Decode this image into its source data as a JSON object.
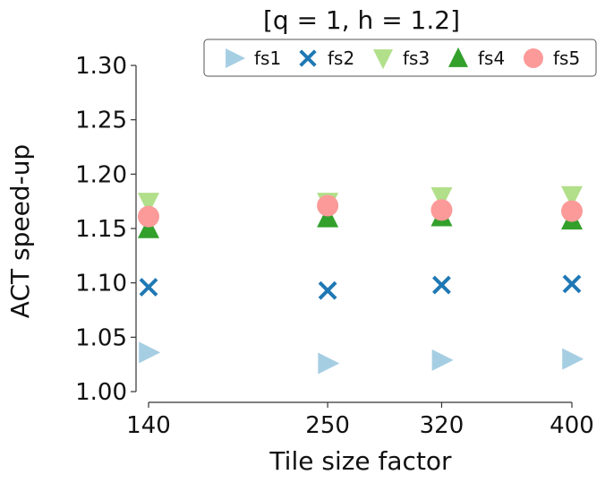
{
  "chart_data": {
    "type": "scatter",
    "title": "[q = 1, h = 1.2]",
    "xlabel": "Tile size factor",
    "ylabel": "ACT speed-up",
    "x": [
      140,
      250,
      320,
      400
    ],
    "x_tick_labels": [
      "140",
      "250",
      "320",
      "400"
    ],
    "xlim": [
      140,
      400
    ],
    "ylim": [
      1.0,
      1.3
    ],
    "y_ticks": [
      1.0,
      1.05,
      1.1,
      1.15,
      1.2,
      1.25,
      1.3
    ],
    "y_tick_labels": [
      "1.00",
      "1.05",
      "1.10",
      "1.15",
      "1.20",
      "1.25",
      "1.30"
    ],
    "grid": false,
    "legend_position": "top-right",
    "series": [
      {
        "name": "fs1",
        "marker": "triangle-right",
        "color": "#a6cee3",
        "values": [
          1.036,
          1.026,
          1.029,
          1.03
        ]
      },
      {
        "name": "fs2",
        "marker": "x",
        "color": "#1f78b4",
        "values": [
          1.096,
          1.093,
          1.098,
          1.099
        ]
      },
      {
        "name": "fs3",
        "marker": "triangle-down",
        "color": "#b2df8a",
        "values": [
          1.174,
          1.174,
          1.179,
          1.18
        ]
      },
      {
        "name": "fs4",
        "marker": "triangle-up",
        "color": "#33a02c",
        "values": [
          1.15,
          1.16,
          1.161,
          1.158
        ]
      },
      {
        "name": "fs5",
        "marker": "circle",
        "color": "#fb9a99",
        "values": [
          1.161,
          1.171,
          1.167,
          1.166
        ]
      }
    ]
  }
}
